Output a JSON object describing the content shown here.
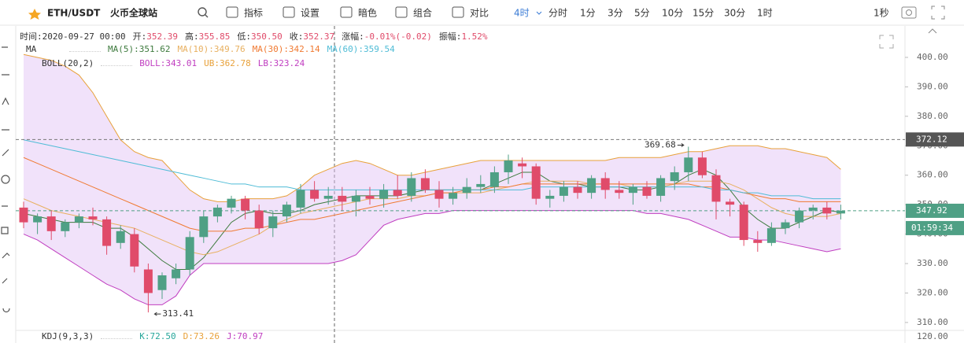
{
  "toolbar": {
    "symbol": "ETH/USDT",
    "exchange": "火币全球站",
    "tools": [
      "指标",
      "设置",
      "暗色",
      "组合",
      "对比"
    ],
    "intervals": [
      "4时",
      "分时",
      "1分",
      "3分",
      "5分",
      "10分",
      "15分",
      "30分",
      "1时"
    ],
    "speed": "1秒"
  },
  "info": {
    "items": [
      {
        "label": "时间:",
        "value": "2020-09-27 00:00"
      },
      {
        "label": "开:",
        "value": "352.39"
      },
      {
        "label": "高:",
        "value": "355.85"
      },
      {
        "label": "低:",
        "value": "350.50"
      },
      {
        "label": "收:",
        "value": "352.37"
      },
      {
        "label": "涨幅:",
        "value": "-0.01%(-0.02)"
      },
      {
        "label": "振幅:",
        "value": "1.52%"
      }
    ],
    "kdj": {
      "label": "KDJ(9,3,3)",
      "items": [
        {
          "text": "K:72.50",
          "color": "#26a69a"
        },
        {
          "text": "D:73.26",
          "color": "#e8a13a"
        },
        {
          "text": "J:70.97",
          "color": "#c03ec0"
        }
      ]
    }
  },
  "chart_data": {
    "type": "candlestick",
    "up_color": "#4fa085",
    "down_color": "#e04b6a",
    "ylim": [
      307.3,
      408
    ],
    "yticks": [
      {
        "value": 310,
        "label": "310.00"
      },
      {
        "value": 320,
        "label": "320.00"
      },
      {
        "value": 330,
        "label": "330.00"
      },
      {
        "value": 340,
        "label": "340.00"
      },
      {
        "value": 350,
        "label": "350.00"
      },
      {
        "value": 360,
        "label": "360.00"
      },
      {
        "value": 370,
        "label": "370.00"
      },
      {
        "value": 380,
        "label": "380.00"
      },
      {
        "value": 390,
        "label": "390.00"
      },
      {
        "value": 400,
        "label": "400.00"
      }
    ],
    "open": [
      349,
      344,
      346,
      341,
      344,
      346,
      345,
      337,
      340,
      328,
      321,
      325,
      328,
      339,
      346,
      349,
      352,
      348,
      342,
      346,
      349,
      355,
      352,
      353,
      351,
      353,
      352,
      355,
      353,
      359,
      355,
      352,
      354,
      356,
      356,
      361,
      364,
      363,
      352,
      353,
      356,
      354,
      359,
      355,
      354,
      356,
      353,
      358,
      361,
      366,
      360,
      351,
      350,
      338,
      337,
      342,
      344,
      348,
      349,
      347
    ],
    "high": [
      351,
      347,
      348,
      345,
      347,
      349,
      346,
      343,
      342,
      330,
      327,
      330,
      341,
      348,
      350,
      353,
      353,
      350,
      348,
      351,
      357,
      358,
      356,
      356,
      355,
      356,
      357,
      360,
      361,
      362,
      358,
      356,
      359,
      360,
      363,
      367,
      366,
      364,
      355,
      358,
      358,
      360,
      361,
      358,
      357,
      358,
      360,
      363,
      369.68,
      368,
      362,
      352,
      351,
      341,
      344,
      345,
      349,
      350,
      351,
      350
    ],
    "low": [
      342,
      340,
      338,
      339,
      342,
      343,
      333,
      335,
      327,
      313.41,
      318,
      323,
      326,
      337,
      344,
      347,
      345,
      340,
      339,
      344,
      347,
      351,
      350,
      348,
      346,
      350,
      349,
      352,
      351,
      354,
      349,
      350,
      352,
      354,
      354,
      357,
      359,
      350,
      349,
      351,
      352,
      352,
      352,
      352,
      350,
      352,
      351,
      355,
      358,
      359,
      345,
      346,
      336,
      334,
      336,
      340,
      342,
      345,
      345,
      345
    ],
    "close": [
      344,
      346,
      341,
      344,
      346,
      345,
      336,
      341,
      329,
      320,
      326,
      328,
      339,
      346,
      349,
      352,
      348,
      342,
      346,
      350,
      355,
      352,
      353,
      351,
      353,
      352,
      355,
      353,
      359,
      355,
      352,
      354,
      356,
      357,
      361,
      365,
      363,
      352,
      353,
      356,
      354,
      359,
      355,
      354,
      356,
      353,
      359,
      361,
      366,
      360,
      351,
      350,
      338,
      337,
      342,
      344,
      348,
      349,
      347,
      347.92
    ],
    "ma_series": [
      {
        "label": "MA(5):351.62",
        "color": "#3d7a3d",
        "values": [
          347,
          346,
          345,
          344,
          344,
          344,
          342,
          342,
          339,
          335,
          331,
          328,
          328,
          332,
          338,
          344,
          347,
          348,
          347,
          347,
          348,
          350,
          351,
          352,
          353,
          353,
          353,
          353,
          354,
          355,
          355,
          355,
          355,
          355,
          357,
          359,
          361,
          361,
          358,
          357,
          357,
          356,
          356,
          356,
          355,
          355,
          356,
          357,
          360,
          362,
          360,
          355,
          349,
          345,
          342,
          342,
          344,
          346,
          348,
          347.5
        ]
      },
      {
        "label": "MA(10):349.76",
        "color": "#e8b060",
        "values": [
          352,
          350,
          348,
          347,
          346,
          345,
          344,
          343,
          342,
          340,
          338,
          336,
          334,
          333,
          334,
          336,
          338,
          340,
          343,
          345,
          347,
          348,
          349,
          350,
          351,
          352,
          352,
          352,
          353,
          353,
          354,
          354,
          354,
          354,
          355,
          356,
          357,
          358,
          358,
          358,
          358,
          357,
          357,
          357,
          356,
          356,
          356,
          357,
          358,
          358,
          358,
          357,
          355,
          352,
          349,
          347,
          346,
          346,
          346,
          347
        ]
      },
      {
        "label": "MA(30):342.14",
        "color": "#f07a32",
        "values": [
          366,
          364,
          362,
          360,
          358,
          356,
          354,
          352,
          350,
          348,
          346,
          344,
          342,
          341,
          341,
          341,
          342,
          342,
          343,
          344,
          345,
          345,
          346,
          347,
          348,
          349,
          350,
          351,
          352,
          353,
          354,
          354,
          355,
          355,
          356,
          356,
          357,
          357,
          357,
          357,
          357,
          357,
          357,
          357,
          357,
          357,
          357,
          357,
          357,
          356,
          356,
          355,
          354,
          353,
          352,
          352,
          351,
          351,
          351,
          351
        ]
      },
      {
        "label": "MA(60):359.54",
        "color": "#4fbcd6",
        "values": [
          372,
          371,
          370,
          369,
          368,
          367,
          366,
          365,
          364,
          363,
          362,
          361,
          360,
          359,
          358,
          357,
          357,
          356,
          356,
          356,
          355,
          355,
          355,
          355,
          355,
          355,
          355,
          355,
          355,
          355,
          355,
          355,
          355,
          355,
          355,
          355,
          355,
          356,
          356,
          356,
          356,
          356,
          356,
          356,
          356,
          356,
          356,
          356,
          356,
          356,
          355,
          355,
          354,
          354,
          353,
          353,
          353,
          352,
          352,
          352
        ]
      }
    ],
    "ma_label": "MA",
    "boll": {
      "label": "BOLL(20,2)",
      "mid_label": "BOLL:343.01",
      "mid_color": "#c03ec0",
      "fill": "rgba(225,190,245,0.45)",
      "upper": {
        "label": "UB:362.78",
        "color": "#e8a13a",
        "values": [
          401,
          400,
          399,
          397,
          394,
          388,
          380,
          372,
          368,
          366,
          365,
          360,
          355,
          352,
          351,
          351,
          352,
          352,
          352,
          353,
          356,
          360,
          362,
          364,
          365,
          364,
          362,
          360,
          360,
          361,
          362,
          363,
          364,
          365,
          365,
          365,
          365,
          365,
          365,
          365,
          365,
          365,
          365,
          366,
          366,
          366,
          366,
          367,
          368,
          368,
          369,
          370,
          370,
          370,
          369,
          369,
          368,
          367,
          366,
          362
        ]
      },
      "lower": {
        "label": "LB:323.24",
        "color": "#c03ec0",
        "values": [
          340,
          338,
          335,
          332,
          329,
          326,
          323,
          321,
          318,
          316,
          316,
          319,
          326,
          330,
          330,
          330,
          330,
          330,
          330,
          330,
          330,
          330,
          330,
          331,
          333,
          338,
          343,
          345,
          346,
          347,
          347,
          348,
          348,
          348,
          348,
          348,
          348,
          348,
          348,
          348,
          348,
          348,
          348,
          348,
          348,
          347,
          347,
          346,
          345,
          343,
          341,
          339,
          339,
          338,
          338,
          337,
          336,
          335,
          334,
          335
        ]
      }
    },
    "marker_price": 372.12,
    "countdown": "01:59:34",
    "kdj_axis_label": "120.00"
  }
}
